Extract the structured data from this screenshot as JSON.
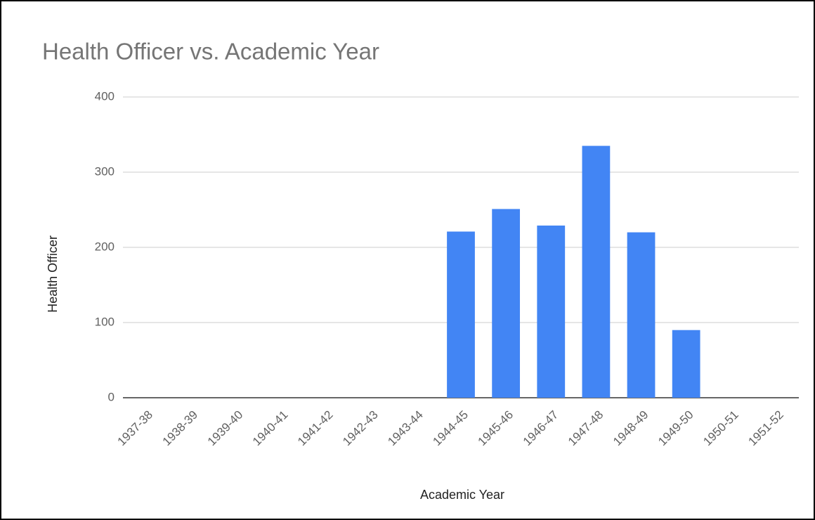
{
  "chart_data": {
    "type": "bar",
    "title": "Health Officer vs. Academic Year",
    "x_label": "Academic Year",
    "y_label": "Health Officer",
    "categories": [
      "1937-38",
      "1938-39",
      "1939-40",
      "1940-41",
      "1941-42",
      "1942-43",
      "1943-44",
      "1944-45",
      "1945-46",
      "1946-47",
      "1947-48",
      "1948-49",
      "1949-50",
      "1950-51",
      "1951-52"
    ],
    "values": [
      0,
      0,
      0,
      0,
      0,
      0,
      0,
      221,
      251,
      229,
      335,
      220,
      90,
      0,
      0
    ],
    "color": "#4285f4",
    "ylim": [
      0,
      400
    ],
    "yticks": [
      0,
      100,
      200,
      300,
      400
    ],
    "grid": true
  }
}
